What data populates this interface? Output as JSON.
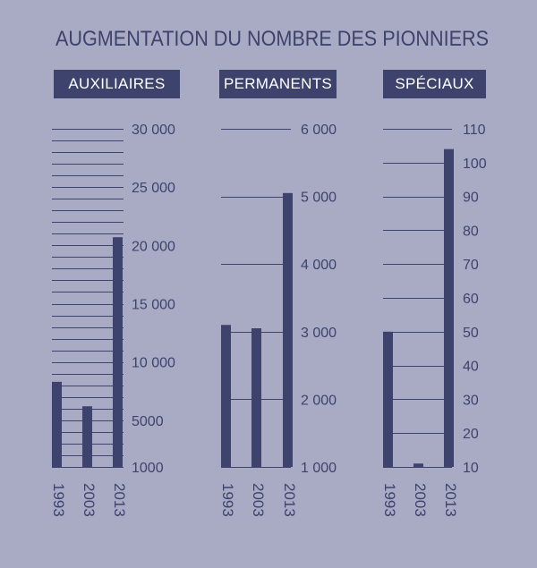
{
  "title": "AUGMENTATION DU NOMBRE DES PIONNIERS",
  "colors": {
    "background": "#a9abc5",
    "ink": "#3d436c",
    "label_text": "#ffffff"
  },
  "chart_data": [
    {
      "type": "bar",
      "title": "AUXILIAIRES",
      "categories": [
        "1993",
        "2003",
        "2013"
      ],
      "values": [
        8300,
        6200,
        20700
      ],
      "ylim": [
        1000,
        30000
      ],
      "ticks": [
        1000,
        5000,
        10000,
        15000,
        20000,
        25000,
        30000
      ],
      "tick_labels": [
        "1000",
        "5000",
        "10 000",
        "15 000",
        "20 000",
        "25 000",
        "30 000"
      ],
      "grid_step": 1000,
      "grid": true
    },
    {
      "type": "bar",
      "title": "PERMANENTS",
      "categories": [
        "1993",
        "2003",
        "2013"
      ],
      "values": [
        3100,
        3050,
        5050
      ],
      "ylim": [
        1000,
        6000
      ],
      "ticks": [
        1000,
        2000,
        3000,
        4000,
        5000,
        6000
      ],
      "tick_labels": [
        "1 000",
        "2 000",
        "3 000",
        "4 000",
        "5 000",
        "6 000"
      ],
      "grid_step": 1000,
      "grid": true
    },
    {
      "type": "bar",
      "title": "SPÉCIAUX",
      "categories": [
        "1993",
        "2003",
        "2013"
      ],
      "values": [
        50,
        11,
        104
      ],
      "ylim": [
        10,
        110
      ],
      "ticks": [
        10,
        20,
        30,
        40,
        50,
        60,
        70,
        80,
        90,
        100,
        110
      ],
      "tick_labels": [
        "10",
        "20",
        "30",
        "40",
        "50",
        "60",
        "70",
        "80",
        "90",
        "100",
        "110"
      ],
      "grid_step": 10,
      "grid": true
    }
  ]
}
